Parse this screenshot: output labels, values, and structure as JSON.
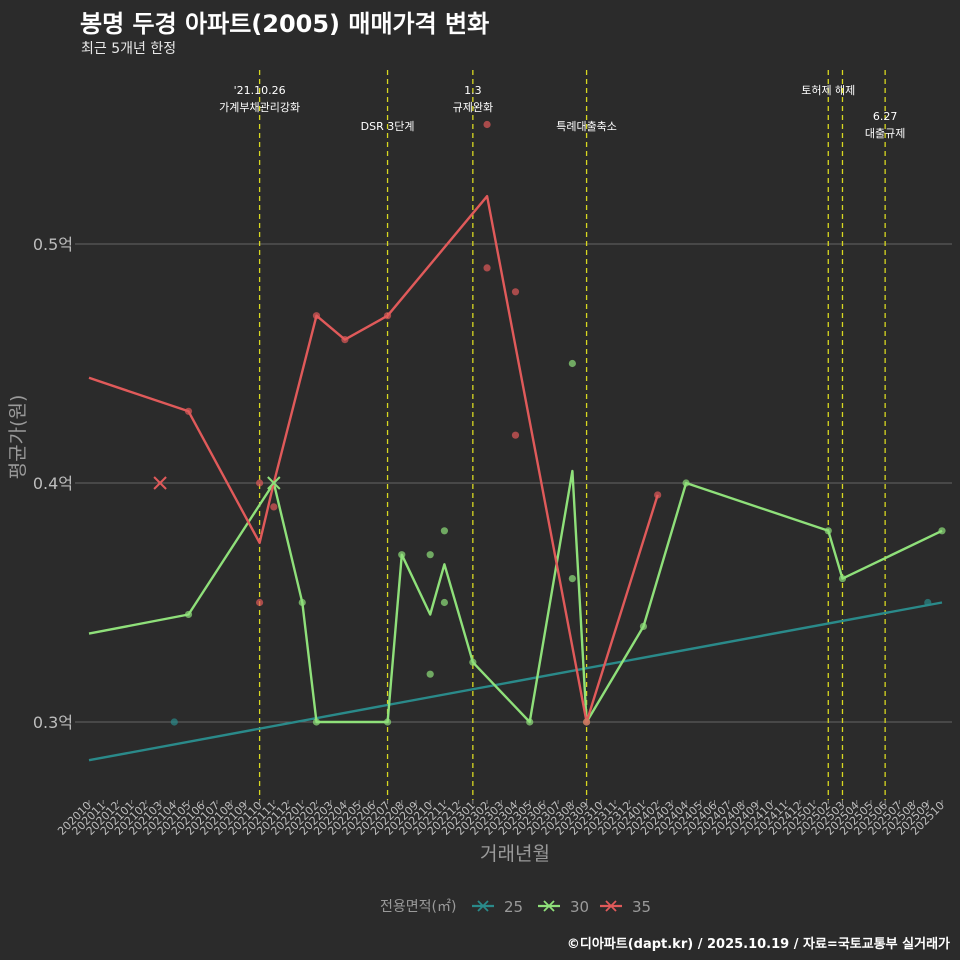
{
  "title": "봉명 두경 아파트(2005) 매매가격 변화",
  "subtitle": "최근 5개년 한정",
  "footer": "©디아파트(dapt.kr) / 2025.10.19 / 자료=국토교통부 실거래가",
  "colors": {
    "background": "#2b2b2b",
    "grid": "#666666",
    "vline": "#d8d820",
    "s25": "#2a8a8a",
    "s30": "#8fe07a",
    "s35": "#e05a5a",
    "axis_text": "#9a9a9a"
  },
  "chart_data": {
    "type": "line",
    "xlabel": "거래년월",
    "ylabel": "평균가(원)",
    "ylim": [
      0.27,
      0.57
    ],
    "yticks": [
      {
        "v": 0.3,
        "label": "0.3억"
      },
      {
        "v": 0.4,
        "label": "0.4억"
      },
      {
        "v": 0.5,
        "label": "0.5억"
      }
    ],
    "categories": [
      "202010",
      "202011",
      "202012",
      "202101",
      "202102",
      "202103",
      "202104",
      "202105",
      "202106",
      "202107",
      "202108",
      "202109",
      "202110",
      "202111",
      "202112",
      "202201",
      "202202",
      "202203",
      "202204",
      "202205",
      "202206",
      "202207",
      "202208",
      "202209",
      "202210",
      "202211",
      "202212",
      "202301",
      "202302",
      "202303",
      "202304",
      "202305",
      "202306",
      "202307",
      "202308",
      "202309",
      "202310",
      "202311",
      "202312",
      "202401",
      "202402",
      "202403",
      "202404",
      "202405",
      "202406",
      "202407",
      "202408",
      "202409",
      "202410",
      "202411",
      "202412",
      "202501",
      "202502",
      "202503",
      "202504",
      "202505",
      "202506",
      "202507",
      "202508",
      "202509",
      "202510"
    ],
    "legend_title": "전용면적(㎡)",
    "series": [
      {
        "name": "25",
        "color": "#2a8a8a",
        "line": [
          [
            "202010",
            0.284
          ],
          [
            "202510",
            0.35
          ]
        ],
        "points": [
          [
            "202104",
            0.3
          ],
          [
            "202509",
            0.35
          ]
        ],
        "crosses": []
      },
      {
        "name": "30",
        "color": "#8fe07a",
        "line": [
          [
            "202010",
            0.337
          ],
          [
            "202105",
            0.345
          ],
          [
            "202111",
            0.4
          ],
          [
            "202201",
            0.35
          ],
          [
            "202202",
            0.3
          ],
          [
            "202207",
            0.3
          ],
          [
            "202208",
            0.37
          ],
          [
            "202210",
            0.345
          ],
          [
            "202211",
            0.366
          ],
          [
            "202301",
            0.325
          ],
          [
            "202305",
            0.3
          ],
          [
            "202308",
            0.405
          ],
          [
            "202309",
            0.3
          ],
          [
            "202401",
            0.34
          ],
          [
            "202404",
            0.4
          ],
          [
            "202502",
            0.38
          ],
          [
            "202503",
            0.36
          ],
          [
            "202510",
            0.38
          ]
        ],
        "points": [
          [
            "202105",
            0.345
          ],
          [
            "202201",
            0.35
          ],
          [
            "202202",
            0.3
          ],
          [
            "202207",
            0.3
          ],
          [
            "202208",
            0.37
          ],
          [
            "202210",
            0.37
          ],
          [
            "202210",
            0.32
          ],
          [
            "202211",
            0.38
          ],
          [
            "202211",
            0.35
          ],
          [
            "202301",
            0.325
          ],
          [
            "202305",
            0.3
          ],
          [
            "202308",
            0.45
          ],
          [
            "202308",
            0.36
          ],
          [
            "202309",
            0.3
          ],
          [
            "202401",
            0.34
          ],
          [
            "202404",
            0.4
          ],
          [
            "202502",
            0.38
          ],
          [
            "202503",
            0.36
          ],
          [
            "202510",
            0.38
          ]
        ],
        "crosses": [
          [
            "202111",
            0.4
          ]
        ]
      },
      {
        "name": "35",
        "color": "#e05a5a",
        "line": [
          [
            "202010",
            0.444
          ],
          [
            "202105",
            0.43
          ],
          [
            "202110",
            0.375
          ],
          [
            "202111",
            0.4
          ],
          [
            "202202",
            0.47
          ],
          [
            "202204",
            0.46
          ],
          [
            "202207",
            0.47
          ],
          [
            "202302",
            0.52
          ],
          [
            "202309",
            0.3
          ],
          [
            "202402",
            0.395
          ]
        ],
        "points": [
          [
            "202105",
            0.43
          ],
          [
            "202110",
            0.4
          ],
          [
            "202110",
            0.35
          ],
          [
            "202111",
            0.39
          ],
          [
            "202202",
            0.47
          ],
          [
            "202204",
            0.46
          ],
          [
            "202207",
            0.47
          ],
          [
            "202302",
            0.49
          ],
          [
            "202302",
            0.55
          ],
          [
            "202304",
            0.48
          ],
          [
            "202304",
            0.42
          ],
          [
            "202309",
            0.3
          ],
          [
            "202402",
            0.395
          ]
        ],
        "crosses": [
          [
            "202103",
            0.4
          ]
        ]
      }
    ],
    "events": [
      {
        "x": "202110",
        "lines": [
          "'21.10.26",
          "가계부채관리강화"
        ],
        "row": 0
      },
      {
        "x": "202207",
        "lines": [
          "DSR 3단계"
        ],
        "row": 1
      },
      {
        "x": "202301",
        "lines": [
          "1.3",
          "규제완화"
        ],
        "row": 0
      },
      {
        "x": "202309",
        "lines": [
          "특례대출축소"
        ],
        "row": 1
      },
      {
        "x": "202502",
        "lines": [
          "토허제 해제"
        ],
        "row": 0
      },
      {
        "x": "202503",
        "lines": [],
        "row": 0
      },
      {
        "x": "202506",
        "lines": [
          "6.27",
          "대출규제"
        ],
        "row": 2
      }
    ]
  }
}
